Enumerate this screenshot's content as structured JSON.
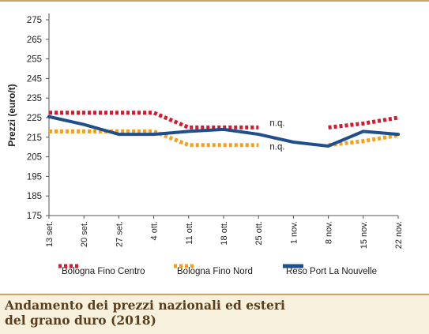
{
  "chart_data": {
    "type": "line",
    "ylabel": "Prezzi (euro/t)",
    "xlabel": "",
    "ylim": [
      175,
      275
    ],
    "yticks": [
      175,
      185,
      195,
      205,
      215,
      225,
      235,
      245,
      255,
      265,
      275
    ],
    "categories": [
      "13 set.",
      "20 set.",
      "27 set.",
      "4 ott.",
      "11 ott.",
      "18 ott.",
      "25 ott.",
      "1 nov.",
      "8 nov.",
      "15 nov.",
      "22 nov."
    ],
    "series": [
      {
        "name": "Bologna Fino Centro",
        "color": "#d7192f",
        "style": "dotted",
        "values": [
          227.5,
          227.5,
          227.5,
          227.5,
          220,
          220,
          220,
          null,
          220,
          222,
          225
        ]
      },
      {
        "name": "Bologna Fino Nord",
        "color": "#f5a01a",
        "style": "dotted",
        "values": [
          218,
          218,
          218,
          218,
          211,
          211,
          211,
          null,
          211,
          213,
          216
        ]
      },
      {
        "name": "Reso Port La Nouvelle",
        "color": "#1f4e8c",
        "style": "solid",
        "values": [
          225.5,
          221.5,
          216.5,
          216.5,
          218,
          219,
          216.5,
          212.5,
          210.5,
          218,
          216.5
        ]
      }
    ],
    "annotations": [
      "n.q.",
      "n.q."
    ],
    "grid": false,
    "legend_position": "bottom"
  },
  "caption": {
    "line1": "Andamento dei prezzi nazionali ed esteri",
    "line2": "del grano duro (2018)"
  }
}
